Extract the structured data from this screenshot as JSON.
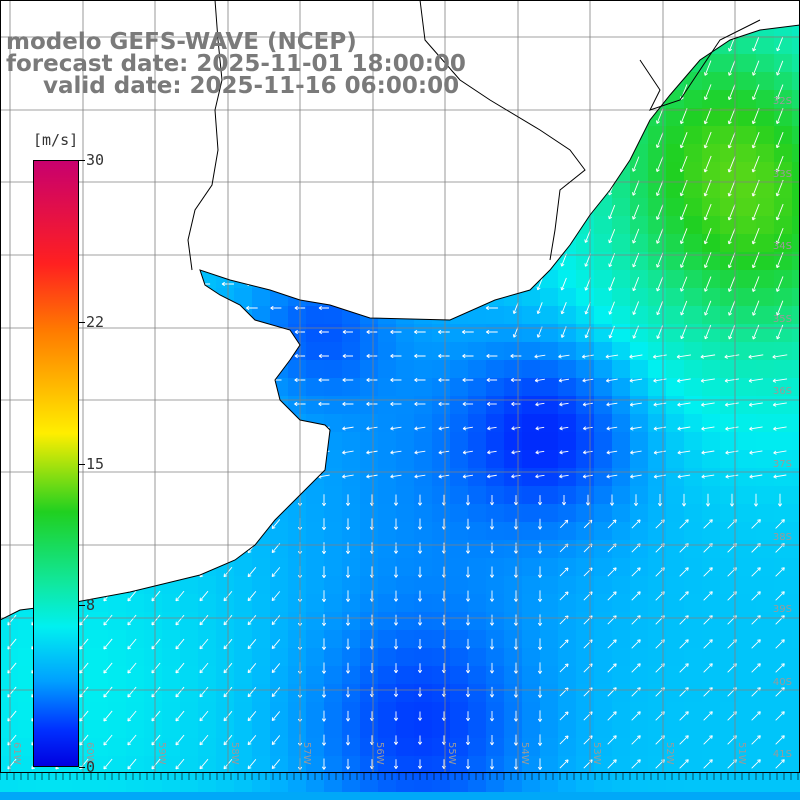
{
  "title": {
    "line1": "modelo GEFS-WAVE (NCEP)",
    "line2": "forecast date: 2025-11-01 18:00:00",
    "line3": "valid date: 2025-11-16 06:00:00"
  },
  "colorbar": {
    "unit": "[m/s]",
    "ticks": [
      {
        "label": "30",
        "value": 30
      },
      {
        "label": "22",
        "value": 22
      },
      {
        "label": "15",
        "value": 15
      },
      {
        "label": "8",
        "value": 8
      },
      {
        "label": "0",
        "value": 0
      }
    ],
    "colors": [
      "#0000e0",
      "#0030ff",
      "#00a0ff",
      "#00f0f0",
      "#10e8a0",
      "#20d020",
      "#ffee00",
      "#ff7a00",
      "#ff2020",
      "#c8006e"
    ]
  },
  "grid": {
    "lat_labels": [
      "32S",
      "33S",
      "34S",
      "35S",
      "36S",
      "37S",
      "38S",
      "39S",
      "40S",
      "41S"
    ],
    "lon_labels": [
      "61W",
      "60W",
      "59W",
      "58W",
      "57W",
      "56W",
      "55W",
      "54W",
      "53W",
      "52W",
      "51W"
    ]
  },
  "colors": {
    "land": "#ffffff",
    "coastline": "#000000",
    "gridline": "#808080",
    "arrows": "#ffffff",
    "title": "#7a7a7a"
  }
}
